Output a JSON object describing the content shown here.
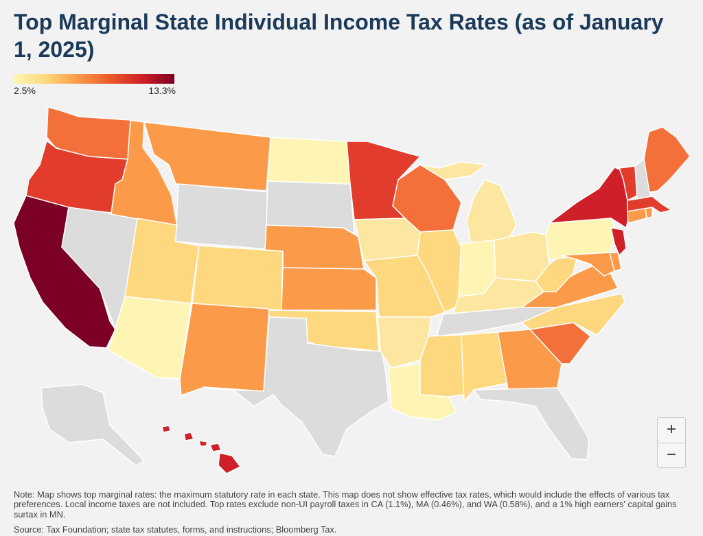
{
  "title": "Top Marginal State Individual Income Tax Rates (as of January 1, 2025)",
  "legend": {
    "min_label": "2.5%",
    "max_label": "13.3%"
  },
  "colors": {
    "no_tax": "#dcdcdc",
    "lowest": "#fef5b4",
    "low": "#fde7a0",
    "low_mid": "#fdd87e",
    "mid": "#fcb468",
    "mid_high": "#fb9a48",
    "high": "#f4703a",
    "higher": "#e23d2c",
    "very_high": "#cf1f28",
    "highest": "#7c0025"
  },
  "map_states": [
    {
      "state": "California",
      "level": "highest"
    },
    {
      "state": "Hawaii",
      "level": "very_high"
    },
    {
      "state": "New York",
      "level": "very_high"
    },
    {
      "state": "New Jersey",
      "level": "very_high"
    },
    {
      "state": "Oregon",
      "level": "higher"
    },
    {
      "state": "Minnesota",
      "level": "higher"
    },
    {
      "state": "Vermont",
      "level": "higher"
    },
    {
      "state": "Massachusetts",
      "level": "higher"
    },
    {
      "state": "Washington",
      "level": "high"
    },
    {
      "state": "Wisconsin",
      "level": "high"
    },
    {
      "state": "Maine",
      "level": "high"
    },
    {
      "state": "South Carolina",
      "level": "high"
    },
    {
      "state": "Idaho",
      "level": "mid_high"
    },
    {
      "state": "Montana",
      "level": "mid_high"
    },
    {
      "state": "Nebraska",
      "level": "mid_high"
    },
    {
      "state": "Kansas",
      "level": "mid_high"
    },
    {
      "state": "New Mexico",
      "level": "mid_high"
    },
    {
      "state": "Virginia",
      "level": "mid_high"
    },
    {
      "state": "Georgia",
      "level": "mid_high"
    },
    {
      "state": "Connecticut",
      "level": "mid_high"
    },
    {
      "state": "Rhode Island",
      "level": "mid_high"
    },
    {
      "state": "Delaware",
      "level": "mid_high"
    },
    {
      "state": "Maryland",
      "level": "mid_high"
    },
    {
      "state": "Utah",
      "level": "low_mid"
    },
    {
      "state": "Colorado",
      "level": "low_mid"
    },
    {
      "state": "Missouri",
      "level": "low_mid"
    },
    {
      "state": "Oklahoma",
      "level": "low_mid"
    },
    {
      "state": "Illinois",
      "level": "low_mid"
    },
    {
      "state": "Alabama",
      "level": "low_mid"
    },
    {
      "state": "Mississippi",
      "level": "low_mid"
    },
    {
      "state": "West Virginia",
      "level": "low_mid"
    },
    {
      "state": "North Carolina",
      "level": "low_mid"
    },
    {
      "state": "Iowa",
      "level": "low"
    },
    {
      "state": "Arkansas",
      "level": "low"
    },
    {
      "state": "Michigan",
      "level": "low"
    },
    {
      "state": "Ohio",
      "level": "low"
    },
    {
      "state": "Kentucky",
      "level": "low"
    },
    {
      "state": "Louisiana",
      "level": "lowest"
    },
    {
      "state": "Indiana",
      "level": "lowest"
    },
    {
      "state": "Pennsylvania",
      "level": "lowest"
    },
    {
      "state": "North Dakota",
      "level": "lowest"
    },
    {
      "state": "Arizona",
      "level": "lowest"
    },
    {
      "state": "Nevada",
      "level": "no_tax"
    },
    {
      "state": "Wyoming",
      "level": "no_tax"
    },
    {
      "state": "South Dakota",
      "level": "no_tax"
    },
    {
      "state": "Texas",
      "level": "no_tax"
    },
    {
      "state": "Florida",
      "level": "no_tax"
    },
    {
      "state": "Tennessee",
      "level": "no_tax"
    },
    {
      "state": "Alaska",
      "level": "no_tax"
    },
    {
      "state": "New Hampshire",
      "level": "no_tax"
    }
  ],
  "zoom": {
    "in_label": "+",
    "out_label": "−"
  },
  "note": "Note: Map shows top marginal rates: the maximum statutory rate in each state. This map does not show effective tax rates, which would include the effects of various tax preferences. Local income taxes are not included. Top rates exclude non-UI payroll taxes in CA (1.1%), MA (0.46%), and WA (0.58%), and a 1% high earners' capital gains surtax in MN.",
  "source": "Source: Tax Foundation; state tax statutes, forms, and instructions; Bloomberg Tax."
}
